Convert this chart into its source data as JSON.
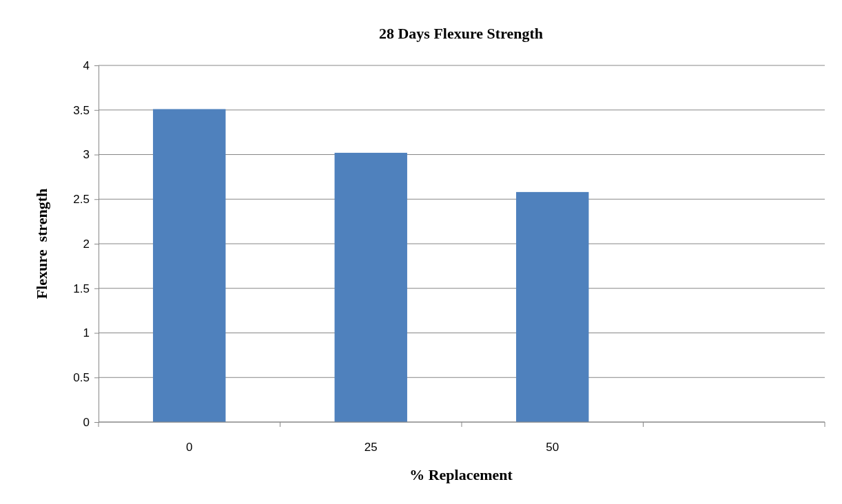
{
  "chart_data": {
    "type": "bar",
    "title": "28 Days Flexure Strength",
    "xlabel": "% Replacement",
    "ylabel": "Flexure  strength",
    "categories": [
      "0",
      "25",
      "50",
      null
    ],
    "series": [
      {
        "color": "#4f81bd",
        "values": [
          3.51,
          3.02,
          2.58,
          null
        ]
      }
    ],
    "ylim": [
      0,
      4
    ],
    "yticks": [
      0,
      0.5,
      1,
      1.5,
      2,
      2.5,
      3,
      3.5,
      4
    ],
    "grid": "y"
  }
}
